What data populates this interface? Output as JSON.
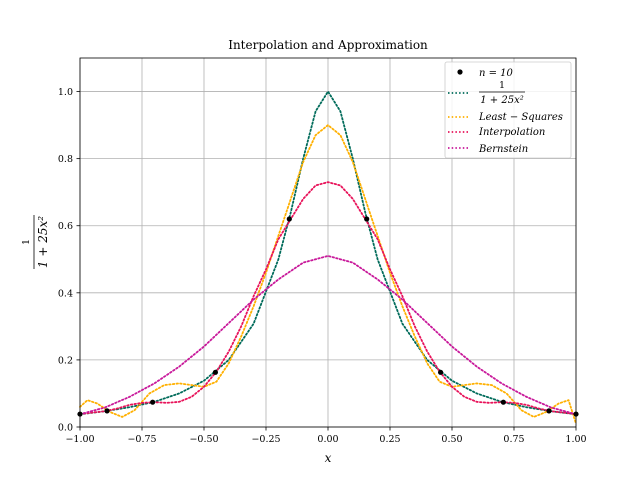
{
  "chart_data": {
    "type": "line",
    "title": "Interpolation and Approximation",
    "xlabel": "x",
    "ylabel": {
      "numerator": "1",
      "denominator": "1 + 25x²"
    },
    "xlim": [
      -1.0,
      1.0
    ],
    "ylim": [
      0.0,
      1.1
    ],
    "xticks": [
      -1.0,
      -0.75,
      -0.5,
      -0.25,
      0.0,
      0.25,
      0.5,
      0.75,
      1.0
    ],
    "xtick_labels": [
      "−1.00",
      "−0.75",
      "−0.50",
      "−0.25",
      "0.00",
      "0.25",
      "0.50",
      "0.75",
      "1.00"
    ],
    "yticks": [
      0.0,
      0.2,
      0.4,
      0.6,
      0.8,
      1.0
    ],
    "ytick_labels": [
      "0.0",
      "0.2",
      "0.4",
      "0.6",
      "0.8",
      "1.0"
    ],
    "grid": true,
    "legend_position": "top-right",
    "points": {
      "name": "n = 10",
      "color": "#000000",
      "x": [
        -1.0,
        -0.891,
        -0.707,
        -0.454,
        -0.156,
        0.156,
        0.454,
        0.707,
        0.891,
        1.0
      ],
      "y": [
        0.0385,
        0.048,
        0.074,
        0.163,
        0.62,
        0.62,
        0.163,
        0.074,
        0.048,
        0.0385
      ]
    },
    "series": [
      {
        "name": "1 / (1 + 25x²)",
        "legend": {
          "numerator": "1",
          "denominator": "1 + 25x²"
        },
        "color": "#006b5a",
        "x": [
          -1.0,
          -0.9,
          -0.8,
          -0.7,
          -0.6,
          -0.5,
          -0.4,
          -0.3,
          -0.2,
          -0.15,
          -0.1,
          -0.05,
          0.0,
          0.05,
          0.1,
          0.15,
          0.2,
          0.3,
          0.4,
          0.5,
          0.6,
          0.7,
          0.8,
          0.9,
          1.0
        ],
        "y": [
          0.038,
          0.047,
          0.059,
          0.075,
          0.1,
          0.138,
          0.2,
          0.308,
          0.5,
          0.64,
          0.8,
          0.941,
          1.0,
          0.941,
          0.8,
          0.64,
          0.5,
          0.308,
          0.2,
          0.138,
          0.1,
          0.075,
          0.059,
          0.047,
          0.038
        ]
      },
      {
        "name": "Least − Squares",
        "color": "#ffb000",
        "x": [
          -1.0,
          -0.97,
          -0.93,
          -0.88,
          -0.83,
          -0.78,
          -0.72,
          -0.66,
          -0.6,
          -0.55,
          -0.5,
          -0.45,
          -0.4,
          -0.35,
          -0.3,
          -0.25,
          -0.2,
          -0.15,
          -0.1,
          -0.05,
          0.0,
          0.05,
          0.1,
          0.15,
          0.2,
          0.25,
          0.3,
          0.35,
          0.4,
          0.45,
          0.5,
          0.55,
          0.6,
          0.66,
          0.72,
          0.78,
          0.83,
          0.88,
          0.93,
          0.97,
          1.0
        ],
        "y": [
          0.06,
          0.08,
          0.07,
          0.045,
          0.03,
          0.05,
          0.1,
          0.125,
          0.13,
          0.125,
          0.12,
          0.135,
          0.19,
          0.27,
          0.36,
          0.46,
          0.57,
          0.68,
          0.79,
          0.87,
          0.9,
          0.87,
          0.79,
          0.68,
          0.57,
          0.46,
          0.36,
          0.27,
          0.19,
          0.135,
          0.12,
          0.125,
          0.13,
          0.125,
          0.1,
          0.05,
          0.03,
          0.045,
          0.07,
          0.08,
          0.01
        ]
      },
      {
        "name": "Interpolation",
        "color": "#e8135a",
        "x": [
          -1.0,
          -0.95,
          -0.9,
          -0.85,
          -0.8,
          -0.75,
          -0.7,
          -0.65,
          -0.6,
          -0.55,
          -0.5,
          -0.45,
          -0.4,
          -0.35,
          -0.3,
          -0.25,
          -0.2,
          -0.15,
          -0.1,
          -0.05,
          0.0,
          0.05,
          0.1,
          0.15,
          0.2,
          0.25,
          0.3,
          0.35,
          0.4,
          0.45,
          0.5,
          0.55,
          0.6,
          0.65,
          0.7,
          0.75,
          0.8,
          0.85,
          0.9,
          0.95,
          1.0
        ],
        "y": [
          0.0385,
          0.043,
          0.047,
          0.055,
          0.066,
          0.072,
          0.074,
          0.072,
          0.075,
          0.09,
          0.12,
          0.165,
          0.225,
          0.3,
          0.39,
          0.47,
          0.56,
          0.62,
          0.68,
          0.72,
          0.73,
          0.72,
          0.68,
          0.62,
          0.56,
          0.47,
          0.39,
          0.3,
          0.225,
          0.165,
          0.12,
          0.09,
          0.075,
          0.072,
          0.074,
          0.072,
          0.066,
          0.055,
          0.047,
          0.043,
          0.0385
        ]
      },
      {
        "name": "Bernstein",
        "color": "#c8189a",
        "x": [
          -1.0,
          -0.9,
          -0.8,
          -0.7,
          -0.6,
          -0.5,
          -0.4,
          -0.3,
          -0.2,
          -0.1,
          0.0,
          0.1,
          0.2,
          0.3,
          0.4,
          0.5,
          0.6,
          0.7,
          0.8,
          0.9,
          1.0
        ],
        "y": [
          0.038,
          0.058,
          0.09,
          0.13,
          0.18,
          0.24,
          0.31,
          0.38,
          0.44,
          0.49,
          0.51,
          0.49,
          0.44,
          0.38,
          0.31,
          0.24,
          0.18,
          0.13,
          0.09,
          0.058,
          0.038
        ]
      }
    ]
  }
}
